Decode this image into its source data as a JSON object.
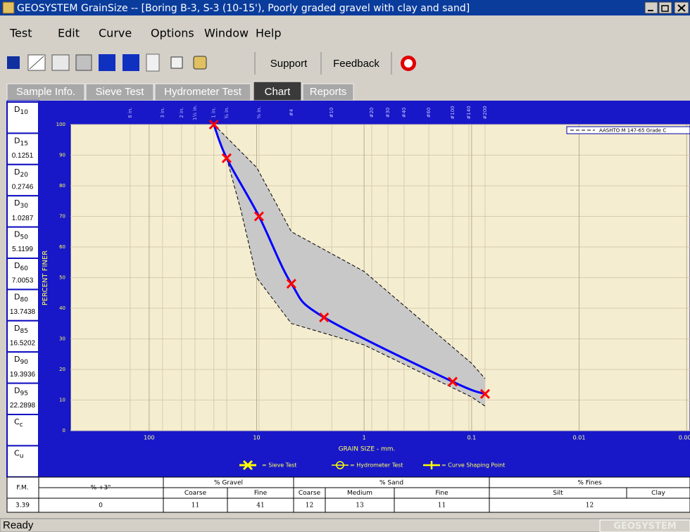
{
  "title_bar": {
    "title": "GEOSYSTEM GrainSize -- [Boring B-3, S-3 (10-15'), Poorly graded gravel with clay and sand]"
  },
  "menu": [
    "Test",
    "Edit",
    "Curve",
    "Options",
    "Window",
    "Help"
  ],
  "toolbar": [
    "Support",
    "Feedback"
  ],
  "tabs": [
    "Sample Info.",
    "Sieve Test",
    "Hydrometer Test",
    "Chart",
    "Reports"
  ],
  "active_tab": 3,
  "d_values": [
    {
      "name": "D",
      "sub": "10"
    },
    {
      "name": "D",
      "sub": "15",
      "value": "0.1251"
    },
    {
      "name": "D",
      "sub": "20",
      "value": "0.2746"
    },
    {
      "name": "D",
      "sub": "30",
      "value": "1.0287"
    },
    {
      "name": "D",
      "sub": "50",
      "value": "5.1199"
    },
    {
      "name": "D",
      "sub": "60",
      "value": "7.0053"
    },
    {
      "name": "D",
      "sub": "80",
      "value": "13.7438"
    },
    {
      "name": "D",
      "sub": "85",
      "value": "16.5202"
    },
    {
      "name": "D",
      "sub": "90",
      "value": "19.3936"
    },
    {
      "name": "D",
      "sub": "95",
      "value": "22.2898"
    },
    {
      "name": "C",
      "sub": "c"
    },
    {
      "name": "C",
      "sub": "u"
    }
  ],
  "chart": {
    "type": "line",
    "x_label": "GRAIN SIZE - mm.",
    "y_label": "PERCENT FINER",
    "xscale": "log",
    "xlim": [
      540,
      0.00093
    ],
    "ylim": [
      0,
      100
    ],
    "xticks": [
      100,
      10,
      1,
      0.1,
      0.01,
      0.001
    ],
    "yticks": [
      0,
      10,
      20,
      30,
      40,
      50,
      60,
      70,
      80,
      90,
      100
    ],
    "top_ticks": [
      {
        "value": 150,
        "label": "6 in."
      },
      {
        "value": 75,
        "label": "3 in."
      },
      {
        "value": 50,
        "label": "2 in."
      },
      {
        "value": 37.5,
        "label": "1½ in."
      },
      {
        "value": 25,
        "label": "1 in."
      },
      {
        "value": 19,
        "label": "¾ in."
      },
      {
        "value": 9.5,
        "label": "⅜ in."
      },
      {
        "value": 4.75,
        "label": "#4"
      },
      {
        "value": 2,
        "label": "#10"
      },
      {
        "value": 0.85,
        "label": "#20"
      },
      {
        "value": 0.6,
        "label": "#30"
      },
      {
        "value": 0.425,
        "label": "#40"
      },
      {
        "value": 0.25,
        "label": "#60"
      },
      {
        "value": 0.15,
        "label": "#100"
      },
      {
        "value": 0.106,
        "label": "#140"
      },
      {
        "value": 0.075,
        "label": "#200"
      }
    ],
    "grid": true,
    "series": {
      "name": "Sieve Test",
      "color": "#0000ff",
      "marker_color": "#ff0000",
      "x": [
        25,
        19,
        9.5,
        4.75,
        2.36,
        0.15,
        0.075
      ],
      "values": [
        100,
        89,
        70,
        48,
        37,
        16,
        12
      ]
    },
    "envelope": {
      "name": "AASHTO M 147-65 Grade C",
      "color": "#c8c8c8",
      "upper": {
        "x": [
          25,
          10,
          4.75,
          1,
          0.1,
          0.075
        ],
        "values": [
          100,
          86,
          65,
          52,
          22,
          17
        ]
      },
      "lower": {
        "x": [
          19,
          14,
          10,
          4.75,
          1,
          0.1,
          0.075
        ],
        "values": [
          89,
          72,
          50,
          35,
          28,
          11,
          8
        ]
      }
    },
    "key_items": [
      "= Sieve Test",
      "= Hydrometer Test",
      "= Curve Shaping Point"
    ]
  },
  "summary": {
    "fm_label": "F.M.",
    "fm": "3.39",
    "plus3_label": "% +3\"",
    "plus3": "0",
    "groups": [
      {
        "name": "% Gravel",
        "cols": [
          {
            "name": "Coarse",
            "value": "11"
          },
          {
            "name": "Fine",
            "value": "41"
          }
        ]
      },
      {
        "name": "% Sand",
        "cols": [
          {
            "name": "Coarse",
            "value": "12"
          },
          {
            "name": "Medium",
            "value": "13"
          },
          {
            "name": "Fine",
            "value": "11"
          }
        ]
      },
      {
        "name": "% Fines",
        "cols": [
          {
            "name": "Silt"
          },
          {
            "name": "Clay"
          }
        ],
        "value": "12"
      }
    ]
  },
  "status": {
    "text": "Ready",
    "brand": "GEOSYSTEM"
  }
}
